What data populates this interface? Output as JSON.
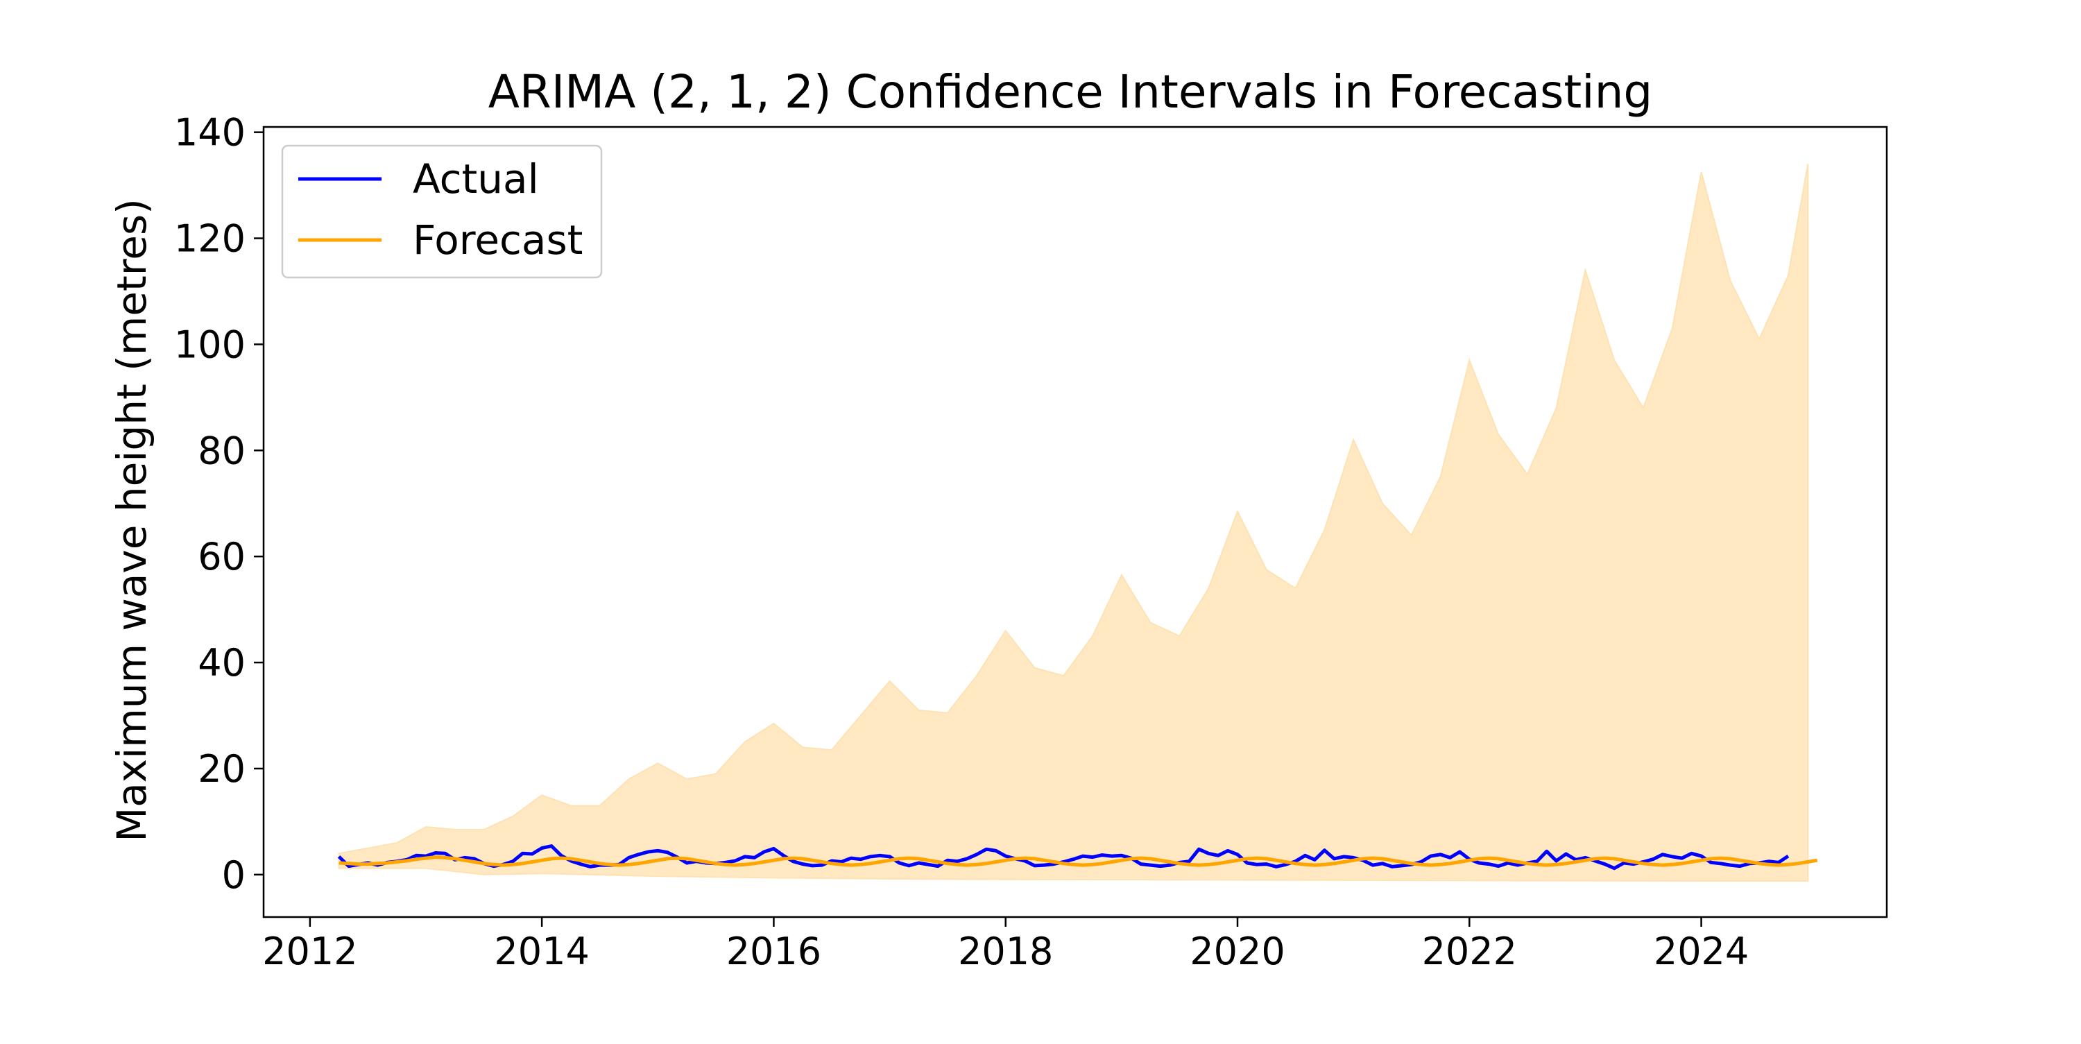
{
  "chart_data": {
    "type": "line",
    "title": "ARIMA (2, 1, 2) Confidence Intervals in Forecasting",
    "xlabel": "",
    "ylabel": "Maximum wave height (metres)",
    "xlim": [
      2011.6,
      2025.6
    ],
    "ylim": [
      -8,
      141
    ],
    "x_ticks": [
      2012,
      2014,
      2016,
      2018,
      2020,
      2022,
      2024
    ],
    "x_tick_labels": [
      "2012",
      "2014",
      "2016",
      "2018",
      "2020",
      "2022",
      "2024"
    ],
    "y_ticks": [
      0,
      20,
      40,
      60,
      80,
      100,
      120,
      140
    ],
    "y_tick_labels": [
      "0",
      "20",
      "40",
      "60",
      "80",
      "100",
      "120",
      "140"
    ],
    "grid": false,
    "legend_position": "top-left",
    "colors": {
      "actual": "#0000ff",
      "forecast": "#ffa500",
      "interval": "#ffe8c2",
      "interval_edge": "#fde3b4"
    },
    "series": [
      {
        "name": "Actual",
        "color": "#0000ff",
        "x_start": 2012.25,
        "x_step": 0.0833333,
        "values": [
          3.4,
          1.6,
          1.9,
          2.2,
          1.8,
          2.3,
          2.5,
          2.8,
          3.6,
          3.5,
          4.1,
          4.0,
          2.8,
          3.2,
          3.0,
          2.1,
          1.6,
          1.9,
          2.5,
          4.0,
          3.9,
          5.0,
          5.4,
          3.6,
          2.6,
          2.0,
          1.5,
          1.8,
          1.8,
          1.9,
          3.2,
          3.8,
          4.3,
          4.5,
          4.2,
          3.3,
          2.2,
          2.5,
          2.2,
          2.1,
          2.3,
          2.6,
          3.4,
          3.2,
          4.3,
          4.9,
          3.6,
          2.5,
          2.0,
          1.7,
          1.8,
          2.6,
          2.4,
          3.1,
          2.9,
          3.4,
          3.6,
          3.4,
          2.2,
          1.7,
          2.2,
          1.9,
          1.6,
          2.7,
          2.5,
          3.0,
          3.8,
          4.8,
          4.5,
          3.5,
          3.0,
          2.6,
          1.7,
          1.8,
          2.0,
          2.4,
          2.9,
          3.5,
          3.3,
          3.7,
          3.5,
          3.6,
          3.1,
          2.0,
          1.8,
          1.6,
          1.8,
          2.3,
          2.5,
          4.8,
          4.0,
          3.6,
          4.5,
          3.8,
          2.2,
          1.9,
          2.0,
          1.5,
          1.9,
          2.5,
          3.6,
          2.8,
          4.6,
          3.0,
          3.4,
          3.2,
          2.7,
          1.8,
          2.1,
          1.5,
          1.7,
          1.9,
          2.4,
          3.5,
          3.8,
          3.2,
          4.3,
          2.9,
          2.2,
          2.0,
          1.6,
          2.2,
          1.8,
          2.2,
          2.5,
          4.4,
          2.6,
          3.9,
          2.8,
          3.2,
          2.6,
          2.0,
          1.2,
          2.2,
          2.0,
          2.4,
          2.9,
          3.8,
          3.4,
          3.1,
          4.0,
          3.5,
          2.3,
          2.1,
          1.8,
          1.6,
          2.1,
          2.2,
          2.5,
          2.3,
          3.5
        ]
      },
      {
        "name": "Forecast",
        "color": "#ffa500",
        "x_start": 2012.25,
        "x_step": 0.0833333,
        "values": [
          2.2,
          2.1,
          2.0,
          2.0,
          2.1,
          2.2,
          2.4,
          2.6,
          2.9,
          3.1,
          3.3,
          3.2,
          3.0,
          2.7,
          2.4,
          2.1,
          1.9,
          1.8,
          1.9,
          2.1,
          2.4,
          2.7,
          3.0,
          3.1,
          3.0,
          2.7,
          2.4,
          2.1,
          1.9,
          1.8,
          1.9,
          2.1,
          2.4,
          2.7,
          3.0,
          3.1,
          3.0,
          2.7,
          2.4,
          2.1,
          1.9,
          1.8,
          1.9,
          2.1,
          2.4,
          2.7,
          3.0,
          3.1,
          3.0,
          2.7,
          2.4,
          2.1,
          1.9,
          1.8,
          1.9,
          2.1,
          2.4,
          2.7,
          3.0,
          3.1,
          3.0,
          2.7,
          2.4,
          2.1,
          1.9,
          1.8,
          1.9,
          2.1,
          2.4,
          2.7,
          3.0,
          3.1,
          3.0,
          2.7,
          2.4,
          2.1,
          1.9,
          1.8,
          1.9,
          2.1,
          2.4,
          2.7,
          3.0,
          3.1,
          3.0,
          2.7,
          2.4,
          2.1,
          1.9,
          1.8,
          1.9,
          2.1,
          2.4,
          2.7,
          3.0,
          3.1,
          3.0,
          2.7,
          2.4,
          2.1,
          1.9,
          1.8,
          1.9,
          2.1,
          2.4,
          2.7,
          3.0,
          3.1,
          3.0,
          2.7,
          2.4,
          2.1,
          1.9,
          1.8,
          1.9,
          2.1,
          2.4,
          2.7,
          3.0,
          3.1,
          3.0,
          2.7,
          2.4,
          2.1,
          1.9,
          1.8,
          1.9,
          2.1,
          2.4,
          2.7,
          3.0,
          3.1,
          3.0,
          2.7,
          2.4,
          2.1,
          1.9,
          1.8,
          1.9,
          2.1,
          2.4,
          2.7,
          3.0,
          3.1,
          3.0,
          2.7,
          2.4,
          2.1,
          1.9,
          1.8,
          1.9,
          2.1,
          2.4,
          2.7
        ]
      }
    ],
    "confidence_interval": {
      "upper": {
        "x": [
          2012.25,
          2012.75,
          2013.0,
          2013.25,
          2013.5,
          2013.75,
          2014.0,
          2014.25,
          2014.5,
          2014.75,
          2015.0,
          2015.25,
          2015.5,
          2015.75,
          2016.0,
          2016.25,
          2016.5,
          2016.75,
          2017.0,
          2017.25,
          2017.5,
          2017.75,
          2018.0,
          2018.25,
          2018.5,
          2018.75,
          2019.0,
          2019.25,
          2019.5,
          2019.75,
          2020.0,
          2020.25,
          2020.5,
          2020.75,
          2021.0,
          2021.25,
          2021.5,
          2021.75,
          2022.0,
          2022.25,
          2022.5,
          2022.75,
          2023.0,
          2023.25,
          2023.5,
          2023.75,
          2024.0,
          2024.25,
          2024.5,
          2024.75,
          2024.92
        ],
        "values": [
          4.0,
          6.0,
          9.0,
          8.5,
          8.5,
          11.0,
          15.0,
          13.0,
          13.0,
          18.0,
          21.0,
          18.0,
          19.0,
          25.0,
          28.5,
          24.0,
          23.5,
          30.0,
          36.5,
          31.0,
          30.5,
          37.5,
          46.0,
          39.0,
          37.5,
          45.0,
          56.5,
          47.5,
          45.0,
          54.0,
          68.5,
          57.5,
          54.0,
          65.0,
          82.0,
          70.0,
          64.0,
          75.0,
          97.0,
          83.0,
          75.5,
          88.0,
          114.0,
          97.0,
          88.0,
          103.0,
          132.5,
          112.0,
          101.0,
          113.0,
          134.0
        ]
      },
      "lower": {
        "x": [
          2012.25,
          2013.0,
          2013.5,
          2014.0,
          2015.0,
          2016.0,
          2017.0,
          2018.0,
          2020.0,
          2022.0,
          2024.0,
          2024.92
        ],
        "values": [
          1.2,
          1.2,
          0.0,
          0.2,
          -0.3,
          -0.6,
          -0.8,
          -0.9,
          -1.0,
          -1.1,
          -1.2,
          -1.2
        ]
      }
    },
    "legend": [
      {
        "label": "Actual",
        "color": "#0000ff"
      },
      {
        "label": "Forecast",
        "color": "#ffa500"
      }
    ]
  }
}
